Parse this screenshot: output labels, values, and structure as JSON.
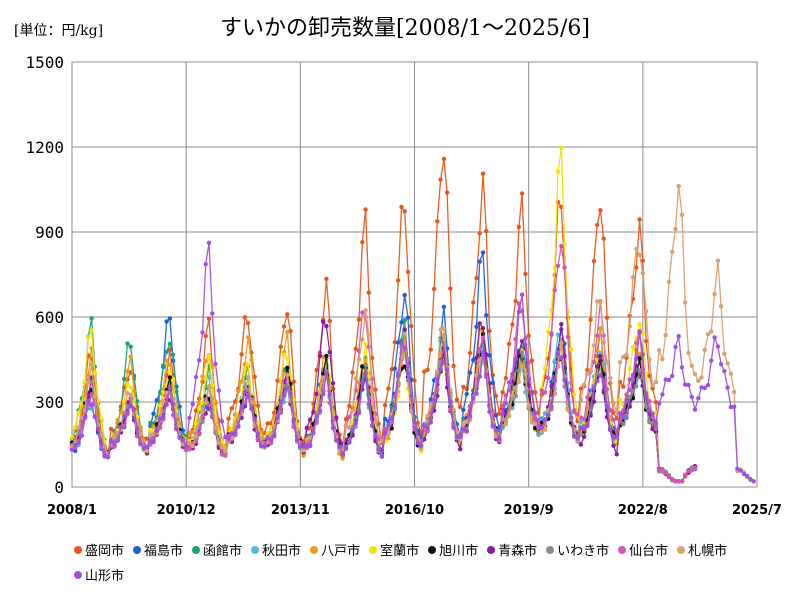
{
  "unit_label": "[単位：円/kg]",
  "chart_data": {
    "type": "line",
    "title": "すいかの卸売数量[2008/1～2025/6]",
    "ylim": [
      0,
      1500
    ],
    "yticks": [
      "0",
      "300",
      "600",
      "900",
      "1200",
      "1500"
    ],
    "ytick_values": [
      0,
      300,
      600,
      900,
      1200,
      1500
    ],
    "xlim": [
      "2008/1",
      "2025/7"
    ],
    "xticks": [
      "2008/1",
      "2010/12",
      "2013/11",
      "2016/10",
      "2019/9",
      "2022/8",
      "2025/7"
    ],
    "grid": true,
    "legend_position": "bottom",
    "series": [
      {
        "name": "盛岡市",
        "color": "#e8561b",
        "end": "2023/12",
        "summer_peaks": [
          480,
          430,
          460,
          560,
          610,
          650,
          700,
          920,
          1020,
          1240,
          1060,
          970,
          1030,
          1050,
          910,
          0,
          0,
          0
        ],
        "winter_lows": [
          40,
          110,
          80,
          60,
          120,
          60,
          40,
          40,
          50,
          90,
          110,
          160,
          100,
          80,
          180,
          0,
          0,
          0
        ]
      },
      {
        "name": "福島市",
        "color": "#1a5fe0",
        "end": "2023/12",
        "summer_peaks": [
          330,
          290,
          590,
          300,
          330,
          380,
          420,
          420,
          690,
          590,
          810,
          500,
          570,
          520,
          450,
          0,
          0,
          0
        ],
        "winter_lows": [
          60,
          100,
          110,
          80,
          110,
          80,
          70,
          60,
          70,
          110,
          120,
          160,
          110,
          110,
          170,
          0,
          0,
          0
        ]
      },
      {
        "name": "函館市",
        "color": "#1aa37a",
        "end": "2023/12",
        "summer_peaks": [
          560,
          520,
          540,
          410,
          400,
          420,
          460,
          440,
          550,
          520,
          540,
          480,
          470,
          440,
          420,
          0,
          0,
          0
        ],
        "winter_lows": [
          60,
          50,
          100,
          70,
          110,
          80,
          70,
          70,
          80,
          110,
          120,
          160,
          120,
          110,
          170,
          0,
          0,
          0
        ]
      },
      {
        "name": "秋田市",
        "color": "#4db8ea",
        "end": "2023/12",
        "summer_peaks": [
          300,
          300,
          340,
          380,
          380,
          350,
          380,
          370,
          500,
          480,
          460,
          420,
          560,
          490,
          420,
          0,
          0,
          0
        ],
        "winter_lows": [
          70,
          100,
          110,
          80,
          110,
          90,
          70,
          70,
          80,
          110,
          120,
          160,
          120,
          120,
          170,
          0,
          0,
          0
        ]
      },
      {
        "name": "八戸市",
        "color": "#f29a12",
        "end": "2023/12",
        "summer_peaks": [
          470,
          430,
          450,
          500,
          510,
          510,
          470,
          480,
          510,
          500,
          560,
          470,
          500,
          520,
          480,
          0,
          0,
          0
        ],
        "winter_lows": [
          40,
          90,
          100,
          70,
          100,
          50,
          40,
          50,
          60,
          100,
          110,
          150,
          110,
          100,
          160,
          0,
          0,
          0
        ]
      },
      {
        "name": "室蘭市",
        "color": "#f5e400",
        "end": "2023/12",
        "summer_peaks": [
          540,
          380,
          420,
          430,
          420,
          490,
          450,
          470,
          460,
          470,
          470,
          450,
          1150,
          460,
          600,
          0,
          0,
          0
        ],
        "winter_lows": [
          70,
          80,
          110,
          80,
          110,
          80,
          60,
          60,
          80,
          110,
          120,
          160,
          120,
          110,
          180,
          0,
          0,
          0
        ]
      },
      {
        "name": "旭川市",
        "color": "#111111",
        "end": "2023/12",
        "summer_peaks": [
          370,
          300,
          360,
          320,
          360,
          410,
          430,
          430,
          460,
          480,
          500,
          460,
          490,
          440,
          420,
          0,
          0,
          0
        ],
        "winter_lows": [
          70,
          100,
          110,
          80,
          110,
          90,
          70,
          70,
          80,
          110,
          120,
          160,
          120,
          120,
          170,
          0,
          0,
          0
        ]
      },
      {
        "name": "青森市",
        "color": "#8a1aa0",
        "end": "2023/12",
        "summer_peaks": [
          360,
          300,
          330,
          300,
          330,
          380,
          610,
          400,
          520,
          460,
          600,
          540,
          540,
          440,
          430,
          0,
          0,
          0
        ],
        "winter_lows": [
          70,
          100,
          110,
          80,
          110,
          90,
          70,
          70,
          80,
          90,
          80,
          160,
          110,
          70,
          170,
          0,
          0,
          0
        ]
      },
      {
        "name": "いわき市",
        "color": "#8c8c8c",
        "end": "2023/12",
        "summer_peaks": [
          380,
          310,
          340,
          330,
          350,
          390,
          400,
          400,
          500,
          480,
          460,
          440,
          460,
          430,
          410,
          0,
          0,
          0
        ],
        "winter_lows": [
          70,
          100,
          110,
          80,
          110,
          90,
          70,
          70,
          80,
          110,
          120,
          160,
          120,
          120,
          170,
          0,
          0,
          0
        ]
      },
      {
        "name": "仙台市",
        "color": "#d455b5",
        "end": "2023/12",
        "summer_peaks": [
          340,
          290,
          320,
          310,
          340,
          370,
          390,
          640,
          520,
          480,
          500,
          660,
          900,
          620,
          520,
          0,
          0,
          0
        ],
        "winter_lows": [
          70,
          100,
          110,
          80,
          110,
          90,
          70,
          70,
          80,
          110,
          120,
          160,
          120,
          120,
          170,
          0,
          0,
          0
        ]
      },
      {
        "name": "札幌市",
        "color": "#d9a070",
        "end": "2025/6",
        "summer_peaks": [
          400,
          330,
          360,
          350,
          360,
          400,
          420,
          620,
          500,
          560,
          480,
          430,
          470,
          650,
          890,
          1070,
          740,
          0
        ],
        "winter_lows": [
          70,
          100,
          110,
          80,
          110,
          90,
          70,
          70,
          80,
          110,
          120,
          160,
          120,
          220,
          260,
          250,
          280,
          0
        ]
      },
      {
        "name": "山形市",
        "color": "#a050e0",
        "end": "2025/6",
        "summer_peaks": [
          310,
          300,
          330,
          820,
          340,
          370,
          380,
          380,
          520,
          470,
          450,
          640,
          480,
          420,
          520,
          500,
          520,
          0
        ],
        "winter_lows": [
          70,
          100,
          110,
          80,
          110,
          90,
          70,
          70,
          80,
          110,
          120,
          160,
          120,
          120,
          170,
          260,
          250,
          0
        ]
      }
    ]
  }
}
